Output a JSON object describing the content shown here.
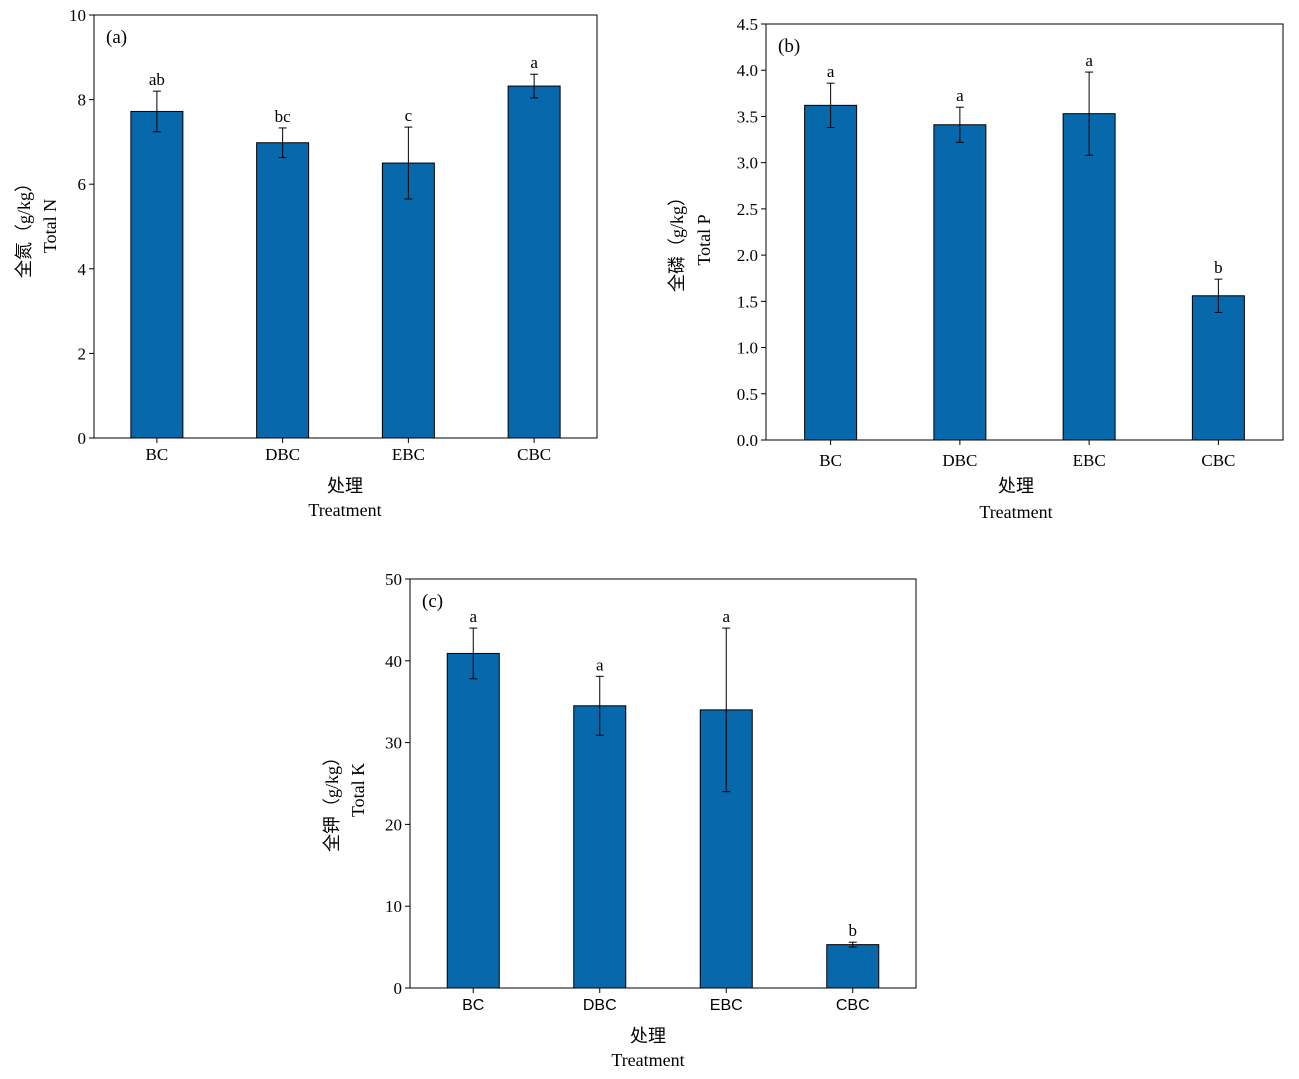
{
  "bar_color": "#0868ac",
  "chart_data": [
    {
      "type": "bar",
      "panel_label": "(a)",
      "categories": [
        "BC",
        "DBC",
        "EBC",
        "CBC"
      ],
      "values": [
        7.72,
        6.98,
        6.5,
        8.32
      ],
      "errors": [
        0.48,
        0.35,
        0.85,
        0.28
      ],
      "significance": [
        "ab",
        "bc",
        "c",
        "a"
      ],
      "ylabel_cn": "全氮（g/kg）",
      "ylabel_en": "Total N",
      "xlabel_cn": "处理",
      "xlabel_en": "Treatment",
      "ylim": [
        0,
        10
      ],
      "yticks": [
        0,
        2,
        4,
        6,
        8,
        10
      ],
      "ytick_labels": [
        "0",
        "2",
        "4",
        "6",
        "8",
        "10"
      ]
    },
    {
      "type": "bar",
      "panel_label": "(b)",
      "categories": [
        "BC",
        "DBC",
        "EBC",
        "CBC"
      ],
      "values": [
        3.62,
        3.41,
        3.53,
        1.56
      ],
      "errors": [
        0.24,
        0.19,
        0.45,
        0.18
      ],
      "significance": [
        "a",
        "a",
        "a",
        "b"
      ],
      "ylabel_cn": "全磷（g/kg）",
      "ylabel_en": "Total P",
      "xlabel_cn": "处理",
      "xlabel_en": "Treatment",
      "ylim": [
        0,
        4.5
      ],
      "yticks": [
        0,
        0.5,
        1,
        1.5,
        2,
        2.5,
        3,
        3.5,
        4,
        4.5
      ],
      "ytick_labels": [
        "0.0",
        "0.5",
        "1.0",
        "1.5",
        "2.0",
        "2.5",
        "3.0",
        "3.5",
        "4.0",
        "4.5"
      ]
    },
    {
      "type": "bar",
      "panel_label": "(c)",
      "categories": [
        "BC",
        "DBC",
        "EBC",
        "CBC"
      ],
      "values": [
        40.9,
        34.5,
        34.0,
        5.3
      ],
      "errors": [
        3.1,
        3.6,
        10.0,
        0.3
      ],
      "significance": [
        "a",
        "a",
        "a",
        "b"
      ],
      "ylabel_cn": "全钾（g/kg）",
      "ylabel_en": "Total K",
      "xlabel_cn": "处理",
      "xlabel_en": "Treatment",
      "ylim": [
        0,
        50
      ],
      "yticks": [
        0,
        10,
        20,
        30,
        40,
        50
      ],
      "ytick_labels": [
        "0",
        "10",
        "20",
        "30",
        "40",
        "50"
      ]
    }
  ]
}
